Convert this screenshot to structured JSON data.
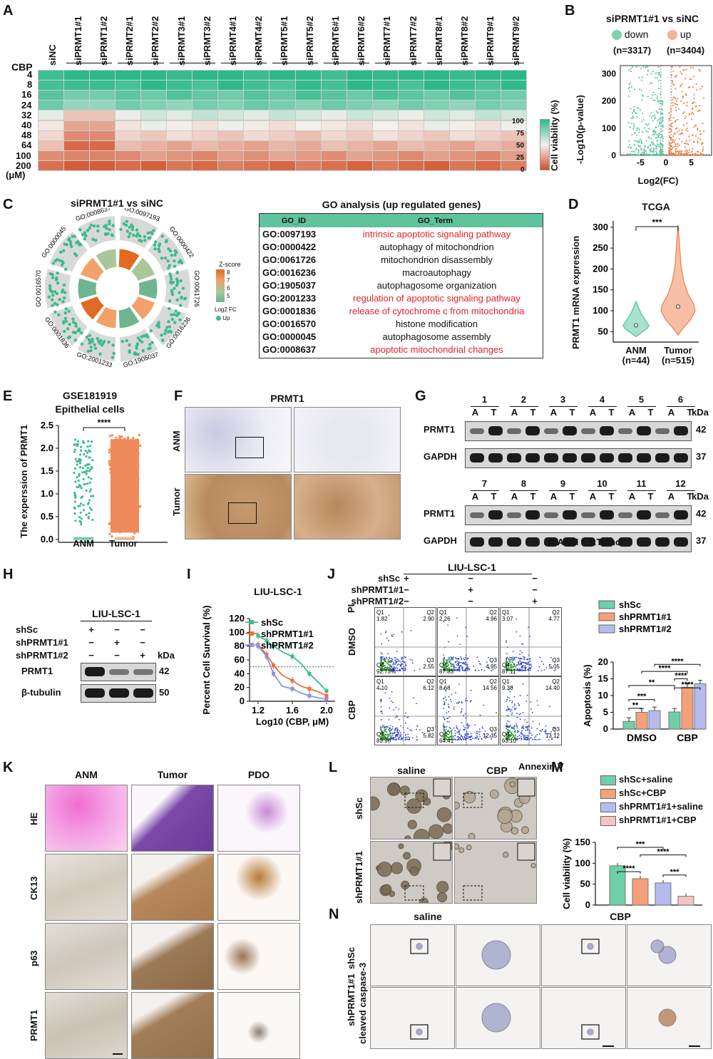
{
  "panel_labels": [
    "A",
    "B",
    "C",
    "D",
    "E",
    "F",
    "G",
    "H",
    "I",
    "J",
    "K",
    "L",
    "M",
    "N"
  ],
  "heatmap": {
    "row_header": "CBP",
    "unit": "(μM)",
    "columns": [
      "siNC",
      "siPRMT1#1",
      "siPRMT1#2",
      "siPRMT2#1",
      "siPRMT2#2",
      "siPRMT3#1",
      "siPRMT3#2",
      "siPRMT4#1",
      "siPRMT4#2",
      "siPRMT5#1",
      "siPRMT5#2",
      "siPRMT6#1",
      "siPRMT6#2",
      "siPRMT7#1",
      "siPRMT7#2",
      "siPRMT8#1",
      "siPRMT8#2",
      "siPRMT9#1",
      "siPRMT9#2"
    ],
    "rows": [
      "4",
      "8",
      "16",
      "24",
      "32",
      "40",
      "48",
      "64",
      "100",
      "200"
    ],
    "colorbar_label": "Cell viability (%)",
    "colorbar_ticks": [
      "100",
      "75",
      "50",
      "25",
      "0"
    ],
    "colors": {
      "high": "#2bb98a",
      "mid": "#f6f1ee",
      "low": "#d2502a"
    }
  },
  "volcano": {
    "title": "siPRMT1#1 vs siNC",
    "down_label": "down",
    "up_label": "up",
    "down_n": "(n=3317)",
    "up_n": "(n=3404)",
    "ylabel": "-Log10(p-value)",
    "xlabel": "Log2(FC)",
    "yticks": [
      "300",
      "200",
      "100",
      "0"
    ],
    "xticks": [
      "-5",
      "0",
      "5"
    ],
    "colors": {
      "down": "#66c9a5",
      "up": "#f1884f"
    }
  },
  "goplot": {
    "title": "siPRMT1#1 vs siNC",
    "terms": [
      "GO:0097193",
      "GO:0000422",
      "GO:0061726",
      "GO:0016236",
      "GO:1905037",
      "GO:2001233",
      "GO:0001836",
      "GO:0016570",
      "GO:0000045",
      "GO:0008637"
    ],
    "zscore_label": "Z-score",
    "zscore_ticks": [
      "8",
      "7",
      "6",
      "5"
    ],
    "fc_label": "Log2 FC",
    "fc_up": "Up"
  },
  "go_table": {
    "title": "GO analysis (up regulated genes)",
    "headers": [
      "GO_ID",
      "GO_Term"
    ],
    "rows": [
      {
        "id": "GO:0097193",
        "term": "intrinsic apoptotic signaling pathway",
        "hl": true
      },
      {
        "id": "GO:0000422",
        "term": "autophagy of mitochondrion",
        "hl": false
      },
      {
        "id": "GO:0061726",
        "term": "mitochondrion disassembly",
        "hl": false
      },
      {
        "id": "GO:0016236",
        "term": "macroautophagy",
        "hl": false
      },
      {
        "id": "GO:1905037",
        "term": "autophagosome organization",
        "hl": false
      },
      {
        "id": "GO:2001233",
        "term": "regulation of apoptotic signaling pathway",
        "hl": true
      },
      {
        "id": "GO:0001836",
        "term": "release of cytochrome c from mitochondria",
        "hl": true
      },
      {
        "id": "GO:0016570",
        "term": "histone modification",
        "hl": false
      },
      {
        "id": "GO:0000045",
        "term": "autophagosome assembly",
        "hl": false
      },
      {
        "id": "GO:0008637",
        "term": "apoptotic mitochondrial changes",
        "hl": true
      }
    ]
  },
  "tcga": {
    "title": "TCGA",
    "ylabel": "PRMT1 mRNA expression",
    "yticks": [
      "300",
      "250",
      "200",
      "150",
      "100",
      "50"
    ],
    "groups": [
      {
        "name": "ANM",
        "n": "(n=44)"
      },
      {
        "name": "Tumor",
        "n": "(n=515)"
      }
    ],
    "sig": "***"
  },
  "gse": {
    "title1": "GSE181919",
    "title2": "Epithelial cells",
    "ylabel": "The experssion of PRMT1",
    "yticks": [
      "2.5",
      "2.0",
      "1.5",
      "1.0",
      "0.5",
      "0.0"
    ],
    "groups": [
      "ANM",
      "Tumor"
    ],
    "sig": "****"
  },
  "ihc_f": {
    "title": "PRMT1",
    "rows": [
      "ANM",
      "Tumor"
    ]
  },
  "western_g": {
    "pairs_top": [
      "1",
      "2",
      "3",
      "4",
      "5",
      "6"
    ],
    "pairs_bottom": [
      "7",
      "8",
      "9",
      "10",
      "11",
      "12"
    ],
    "lane_labels": [
      "A",
      "T"
    ],
    "proteins": [
      "PRMT1",
      "GAPDH"
    ],
    "kda_label": "kDa",
    "kda": [
      "42",
      "37"
    ],
    "footnote": "A:ANM    T:Tumor"
  },
  "western_h": {
    "cell_line": "LIU-LSC-1",
    "conditions": [
      "shSc",
      "shPRMT1#1",
      "shPRMT1#2"
    ],
    "signs": [
      [
        "+",
        "−",
        "−"
      ],
      [
        "−",
        "+",
        "−"
      ],
      [
        "−",
        "−",
        "+"
      ]
    ],
    "proteins": [
      "PRMT1",
      "β-tubulin"
    ],
    "kda_label": "kDa",
    "kda": [
      "42",
      "50"
    ]
  },
  "chart_data": [
    {
      "type": "line",
      "title": "LIU-LSC-1",
      "xlabel": "Log10 (CBP, μM)",
      "ylabel": "Percent Cell Survival (%)",
      "xlim": [
        1.1,
        2.1
      ],
      "ylim": [
        0,
        120
      ],
      "xticks": [
        "1.2",
        "1.6",
        "2.0"
      ],
      "yticks": [
        "120",
        "100",
        "80",
        "60",
        "40",
        "20",
        "0"
      ],
      "x": [
        1.2,
        1.3,
        1.38,
        1.48,
        1.6,
        1.7,
        1.8,
        1.9,
        2.0
      ],
      "series": [
        {
          "name": "shSc",
          "color": "#3dbc8e",
          "values": [
            95,
            88,
            80,
            72,
            65,
            55,
            40,
            28,
            15
          ]
        },
        {
          "name": "shPRMT1#1",
          "color": "#ef6f3c",
          "values": [
            82,
            68,
            52,
            38,
            30,
            22,
            18,
            14,
            8
          ]
        },
        {
          "name": "shPRMT1#2",
          "color": "#8d93d8",
          "values": [
            80,
            65,
            40,
            22,
            18,
            12,
            8,
            5,
            3
          ]
        }
      ],
      "reference_line": 50
    },
    {
      "type": "bar",
      "ylabel": "Apoptosis (%)",
      "categories": [
        "DMSO",
        "CBP"
      ],
      "ylim": [
        0,
        20
      ],
      "yticks": [
        "20",
        "15",
        "10",
        "5",
        "0"
      ],
      "series": [
        {
          "name": "shSc",
          "color": "#6fcfa8",
          "values": [
            2.3,
            5.1
          ]
        },
        {
          "name": "shPRMT1#1",
          "color": "#f4a07a",
          "values": [
            5.0,
            12.5
          ]
        },
        {
          "name": "shPRMT1#2",
          "color": "#b6bbee",
          "values": [
            5.5,
            13.5
          ]
        }
      ],
      "significance": [
        "**",
        "***",
        "**",
        "****",
        "****",
        "****",
        "****"
      ]
    },
    {
      "type": "bar",
      "ylabel": "Cell viability (%)",
      "categories": [
        "shSc+saline",
        "shSc+CBP",
        "shPRMT1#1+saline",
        "shPRMT1#1+CBP"
      ],
      "ylim": [
        0,
        150
      ],
      "yticks": [
        "150",
        "100",
        "50",
        "0"
      ],
      "values": [
        94,
        63,
        53,
        21
      ],
      "colors": [
        "#6fcfa8",
        "#f4a07a",
        "#b6bbee",
        "#f3c4c8"
      ],
      "significance": [
        "****",
        "***",
        "****",
        "***"
      ]
    }
  ],
  "flow_j": {
    "cell_line": "LIU-LSC-1",
    "conditions": [
      "shSc",
      "shPRMT1#1",
      "shPRMT1#2"
    ],
    "signs": [
      [
        "+",
        "−",
        "−"
      ],
      [
        "−",
        "+",
        "−"
      ],
      [
        "−",
        "−",
        "+"
      ]
    ],
    "rows": [
      "DMSO",
      "CBP"
    ],
    "yaxis": "PI",
    "xaxis": "Annexin V",
    "quads": [
      [
        {
          "q1": "1.82",
          "q2": "2.90",
          "q3": "2.55",
          "q4": "92.73%"
        },
        {
          "q1": "2.26",
          "q2": "4.96",
          "q3": "4.95",
          "q4": "87.83"
        },
        {
          "q1": "3.07",
          "q2": "4.77",
          "q3": "5.05",
          "q4": "87.11"
        }
      ],
      [
        {
          "q1": "4.10",
          "q2": "6.12",
          "q3": "5.82",
          "q4": "83.96"
        },
        {
          "q1": "8.68",
          "q2": "14.56",
          "q3": "12.35",
          "q4": "64.41"
        },
        {
          "q1": "9.38",
          "q2": "14.40",
          "q3": "13.12",
          "q4": "63.10"
        }
      ]
    ]
  },
  "ihc_k": {
    "cols": [
      "ANM",
      "Tumor",
      "PDO"
    ],
    "rows": [
      "HE",
      "CK13",
      "p63",
      "PRMT1"
    ]
  },
  "organoid_l": {
    "cols": [
      "saline",
      "CBP"
    ],
    "rows": [
      "shSc",
      "shPRMT1#1"
    ]
  },
  "ihc_n": {
    "cols": [
      "saline",
      "CBP"
    ],
    "rows": [
      "shSc",
      "shPRMT1#1"
    ],
    "stain": "cleaved caspase-3"
  }
}
